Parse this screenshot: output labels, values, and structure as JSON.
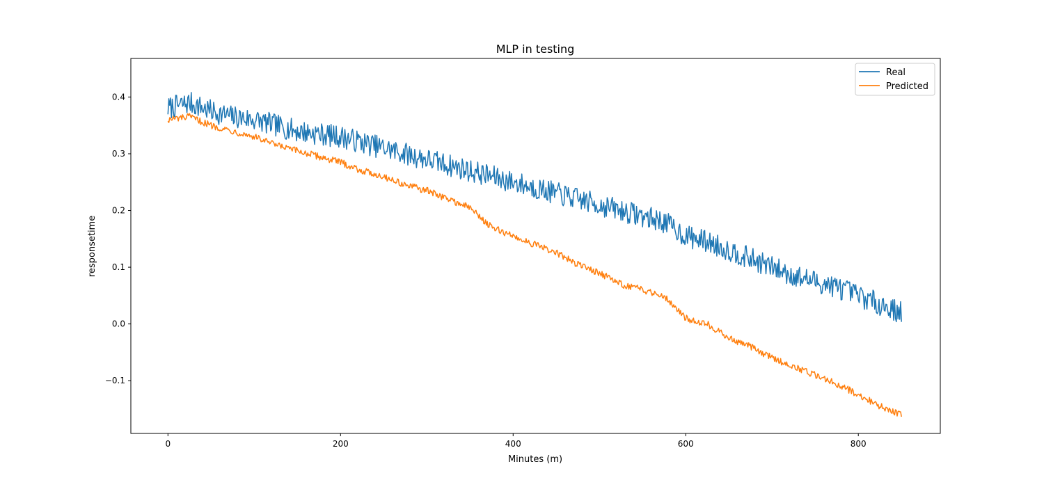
{
  "chart_data": {
    "type": "line",
    "title": "MLP in testing",
    "xlabel": "Minutes (m)",
    "ylabel": "responsetime",
    "xlim": [
      -43,
      895
    ],
    "ylim": [
      -0.193,
      0.468
    ],
    "xticks": [
      0,
      200,
      400,
      600,
      800
    ],
    "yticks": [
      -0.1,
      0.0,
      0.1,
      0.2,
      0.3,
      0.4
    ],
    "ytick_labels": [
      "−0.1",
      "0.0",
      "0.1",
      "0.2",
      "0.3",
      "0.4"
    ],
    "grid": false,
    "legend_position": "top-right",
    "series": [
      {
        "name": "Real",
        "color": "#1f77b4",
        "x": [
          0,
          25,
          50,
          75,
          100,
          125,
          150,
          175,
          200,
          225,
          250,
          275,
          300,
          325,
          350,
          375,
          400,
          425,
          450,
          475,
          500,
          525,
          550,
          575,
          600,
          625,
          650,
          675,
          700,
          725,
          750,
          775,
          800,
          825,
          850
        ],
        "y": [
          0.38,
          0.39,
          0.375,
          0.365,
          0.36,
          0.35,
          0.34,
          0.335,
          0.33,
          0.32,
          0.31,
          0.3,
          0.29,
          0.28,
          0.27,
          0.26,
          0.25,
          0.24,
          0.23,
          0.22,
          0.21,
          0.2,
          0.19,
          0.18,
          0.155,
          0.145,
          0.13,
          0.115,
          0.1,
          0.085,
          0.075,
          0.065,
          0.05,
          0.035,
          0.02
        ]
      },
      {
        "name": "Predicted",
        "color": "#ff7f0e",
        "x": [
          0,
          25,
          50,
          75,
          100,
          125,
          150,
          175,
          200,
          225,
          250,
          275,
          300,
          325,
          350,
          375,
          400,
          425,
          450,
          475,
          500,
          525,
          550,
          575,
          600,
          625,
          650,
          675,
          700,
          725,
          750,
          775,
          800,
          825,
          850
        ],
        "y": [
          0.36,
          0.365,
          0.35,
          0.34,
          0.33,
          0.315,
          0.305,
          0.295,
          0.285,
          0.27,
          0.26,
          0.245,
          0.235,
          0.22,
          0.205,
          0.17,
          0.155,
          0.14,
          0.125,
          0.105,
          0.09,
          0.07,
          0.06,
          0.05,
          0.01,
          0.0,
          -0.025,
          -0.04,
          -0.06,
          -0.075,
          -0.09,
          -0.105,
          -0.125,
          -0.145,
          -0.16
        ]
      }
    ]
  }
}
